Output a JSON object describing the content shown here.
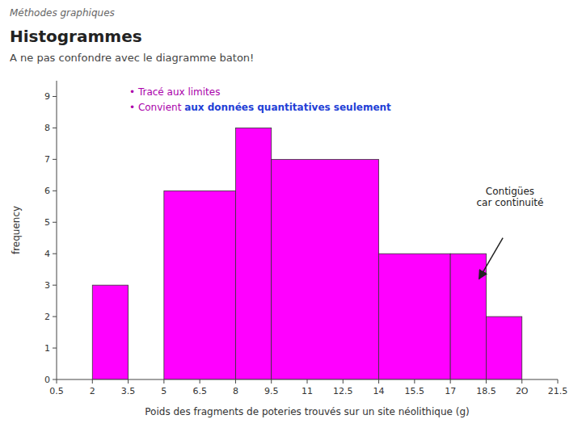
{
  "chart_data": {
    "type": "histogram",
    "header": "Méthodes graphiques",
    "title": "Histogrammes",
    "subtitle": "A ne pas confondre avec le diagramme baton!",
    "bins": [
      2.0,
      3.5,
      5.0,
      8.0,
      9.5,
      14.0,
      17.0,
      18.5,
      20.0
    ],
    "values": [
      3,
      0,
      6,
      8,
      7,
      4,
      4,
      2
    ],
    "color": "#FF00FF",
    "xlim": [
      0.5,
      21.5
    ],
    "ylim": [
      0,
      9.5
    ],
    "xticks": [
      0.5,
      2,
      3.5,
      5,
      6.5,
      8,
      9.5,
      11,
      12.5,
      14,
      15.5,
      17,
      18.5,
      {
        "value": 20,
        "label": "2O"
      },
      21.5
    ],
    "yticks": [
      0,
      1,
      2,
      3,
      4,
      5,
      6,
      7,
      8,
      9
    ],
    "ylabel": "frequency",
    "xlabel": "Poids des fragments de poteries trouvés sur un site néolithique (g)",
    "bullets": [
      {
        "text": "• Tracé aux limites"
      },
      {
        "text": "• Convient ",
        "highlight": "aux données quantitatives seulement"
      }
    ],
    "annotations": [
      {
        "text": "Contigües\ncar continuité",
        "x": 19.5,
        "y": 5.8,
        "arrow_from": [
          19.2,
          4.5
        ],
        "arrow_to": [
          18.2,
          3.2
        ]
      }
    ],
    "grid": false
  }
}
